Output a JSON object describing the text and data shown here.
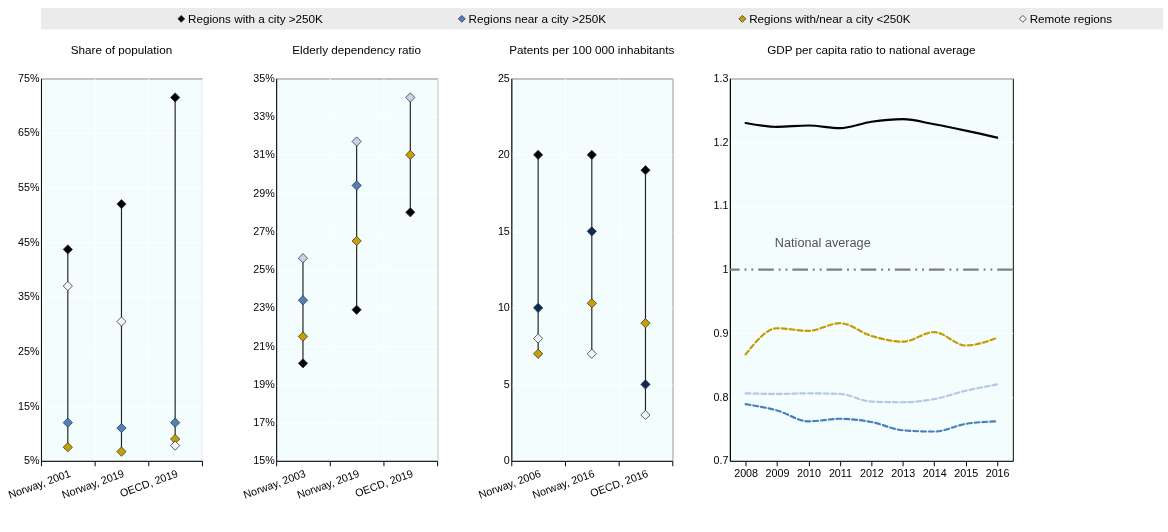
{
  "chart_data": [
    {
      "type": "scatter",
      "title": "Share of population",
      "categories": [
        "Norway, 2001",
        "Norway, 2019",
        "OECD, 2019"
      ],
      "ylim": [
        5,
        75
      ],
      "yticks": [
        {
          "value": 5,
          "label": "5%"
        },
        {
          "value": 15,
          "label": "15%"
        },
        {
          "value": 25,
          "label": "25%"
        },
        {
          "value": 35,
          "label": "35%"
        },
        {
          "value": 45,
          "label": "45%"
        },
        {
          "value": 55,
          "label": "55%"
        },
        {
          "value": 65,
          "label": "65%"
        },
        {
          "value": 75,
          "label": "75%"
        }
      ],
      "grid": true,
      "marker": "diamond",
      "legend": "top",
      "series": [
        {
          "name": "Regions with a city >250K",
          "color": "#000000",
          "values": [
            43.7,
            52,
            71.5
          ]
        },
        {
          "name": "Regions near a city >250K",
          "color": "#4f81bd",
          "values": [
            12,
            11,
            12
          ]
        },
        {
          "name": "Regions with/near a city <250K",
          "color": "#c9a000",
          "values": [
            7.5,
            6.7,
            9
          ]
        },
        {
          "name": "Remote regions",
          "color": "#f2f4fa",
          "values": [
            37,
            30.5,
            7.8
          ]
        }
      ]
    },
    {
      "type": "scatter",
      "title": "Elderly dependency ratio",
      "categories": [
        "Norway, 2003",
        "Norway, 2019",
        "OECD, 2019"
      ],
      "ylim": [
        15,
        35
      ],
      "yticks": [
        {
          "value": 15,
          "label": "15%"
        },
        {
          "value": 17,
          "label": "17%"
        },
        {
          "value": 19,
          "label": "19%"
        },
        {
          "value": 21,
          "label": "21%"
        },
        {
          "value": 23,
          "label": "23%"
        },
        {
          "value": 25,
          "label": "25%"
        },
        {
          "value": 27,
          "label": "27%"
        },
        {
          "value": 29,
          "label": "29%"
        },
        {
          "value": 31,
          "label": "31%"
        },
        {
          "value": 33,
          "label": "33%"
        },
        {
          "value": 35,
          "label": "35%"
        }
      ],
      "grid": true,
      "marker": "diamond",
      "series": [
        {
          "color": "#000000",
          "values": [
            20.1,
            22.9,
            28
          ]
        },
        {
          "color": "#4f81bd",
          "values": [
            23.4,
            29.4,
            null
          ]
        },
        {
          "color": "#c9a000",
          "values": [
            21.5,
            26.5,
            31
          ]
        },
        {
          "color": "#c5d5ee",
          "values": [
            25.6,
            31.7,
            34
          ]
        }
      ]
    },
    {
      "type": "scatter",
      "title": "Patents per 100 000 inhabitants",
      "categories": [
        "Norway, 2006",
        "Norway, 2016",
        "OECD, 2016"
      ],
      "ylim": [
        0,
        25
      ],
      "yticks": [
        0,
        5,
        10,
        15,
        20,
        25
      ],
      "grid": true,
      "marker": "diamond",
      "series": [
        {
          "color": "#000000",
          "values": [
            20,
            20,
            19
          ]
        },
        {
          "color": "#0b2a5b",
          "values": [
            10,
            15,
            5
          ]
        },
        {
          "color": "#c9a000",
          "values": [
            7,
            10.3,
            9
          ]
        },
        {
          "color": "#eef2fa",
          "values": [
            8,
            7,
            3
          ]
        }
      ]
    },
    {
      "type": "line",
      "title": "GDP per capita ratio to national average",
      "categories": [
        "2008",
        "2009",
        "2010",
        "2011",
        "2012",
        "2013",
        "2014",
        "2015",
        "2016"
      ],
      "ylim": [
        0.7,
        1.3
      ],
      "yticks": [
        0.7,
        0.8,
        0.9,
        1.1,
        1.2,
        1.3,
        {
          "value": 1,
          "label": "1"
        }
      ],
      "grid": true,
      "ref_lines": [
        {
          "axis": "y",
          "value": 1,
          "label": "National average",
          "color": "#7f7f7f",
          "line_style": "dashed"
        }
      ],
      "series": [
        {
          "color": "#000000",
          "line_style": "solid",
          "values": [
            1.23,
            1.224,
            1.226,
            1.222,
            1.232,
            1.236,
            1.228,
            1.218,
            1.207
          ]
        },
        {
          "color": "#4a7ebb",
          "line_style": "dashed",
          "values": [
            0.789,
            0.779,
            0.762,
            0.766,
            0.761,
            0.748,
            0.746,
            0.758,
            0.762
          ]
        },
        {
          "color": "#c59a00",
          "line_style": "dashed",
          "values": [
            0.867,
            0.908,
            0.904,
            0.916,
            0.896,
            0.887,
            0.902,
            0.881,
            0.893
          ]
        },
        {
          "color": "#b4c7e7",
          "line_style": "dashed",
          "values": [
            0.806,
            0.805,
            0.806,
            0.805,
            0.793,
            0.792,
            0.797,
            0.81,
            0.82
          ]
        }
      ]
    }
  ]
}
